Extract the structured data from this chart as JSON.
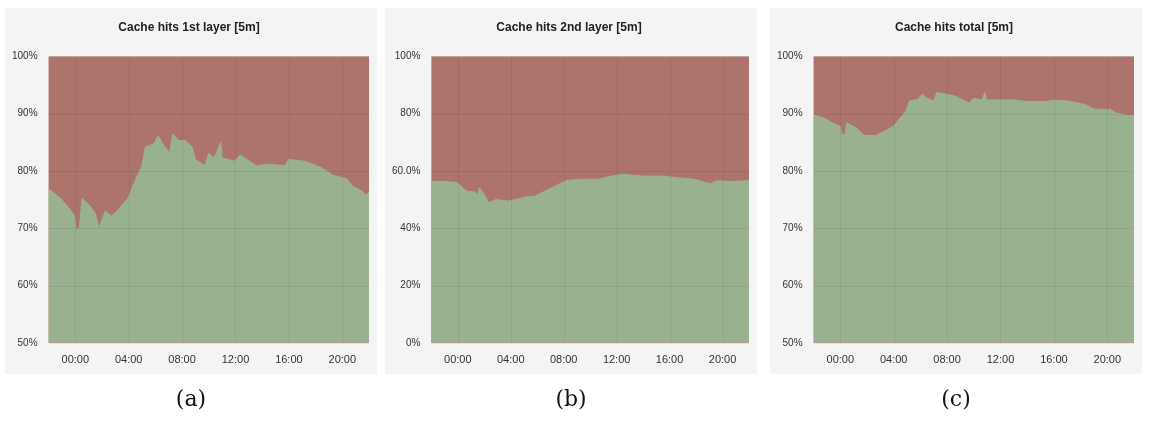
{
  "chart_data": [
    {
      "type": "area",
      "title": "Cache hits 1st layer [5m]",
      "grid": true,
      "legend": false,
      "annotations": [
        "(a)"
      ],
      "xlim": [
        -2,
        22
      ],
      "xticks": [
        {
          "value": 0,
          "label": "00:00"
        },
        {
          "value": 4,
          "label": "04:00"
        },
        {
          "value": 8,
          "label": "08:00"
        },
        {
          "value": 12,
          "label": "12:00"
        },
        {
          "value": 16,
          "label": "16:00"
        },
        {
          "value": 20,
          "label": "20:00"
        }
      ],
      "ylim": [
        50,
        100
      ],
      "yticks": [
        {
          "value": 50,
          "label": "50%"
        },
        {
          "value": 60,
          "label": "60%"
        },
        {
          "value": 70,
          "label": "70%"
        },
        {
          "value": 80,
          "label": "80%"
        },
        {
          "value": 90,
          "label": "90%"
        },
        {
          "value": 100,
          "label": "100%"
        }
      ],
      "bands": [
        {
          "axis": "y",
          "from": 50,
          "to": 100,
          "color": "#ad746b"
        }
      ],
      "x": [
        -2,
        -1.1,
        -0.5,
        -0.05,
        0.07,
        0.3,
        0.5,
        1.04,
        1.5,
        1.76,
        2.24,
        2.72,
        3.2,
        3.93,
        4.41,
        5,
        5.25,
        5.86,
        6.2,
        6.58,
        7.06,
        7.3,
        7.78,
        8.26,
        8.75,
        9,
        9.71,
        10,
        10.4,
        10.9,
        11,
        11.9,
        12.36,
        13.57,
        14.53,
        15.7,
        15.98,
        17.2,
        18.4,
        19.35,
        20.3,
        20.8,
        21.5,
        21.76,
        22
      ],
      "series": [
        {
          "color": "#9ab18f",
          "values": [
            76.9,
            75.2,
            73.6,
            72.2,
            69.7,
            70,
            75.2,
            74.1,
            72.6,
            70,
            73,
            72.1,
            73.2,
            75.2,
            77.9,
            81,
            84.2,
            84.7,
            86.1,
            84.7,
            83.1,
            86.4,
            85.3,
            85.3,
            84.2,
            82,
            80.9,
            83.1,
            82.3,
            85,
            82.3,
            81.7,
            82.8,
            80.9,
            81.2,
            80.9,
            82,
            81.7,
            80.6,
            79.2,
            78.7,
            77.3,
            76.5,
            75.7,
            76.4
          ]
        }
      ]
    },
    {
      "type": "area",
      "title": "Cache hits 2nd layer [5m]",
      "grid": true,
      "legend": false,
      "annotations": [
        "(b)"
      ],
      "xlim": [
        -2,
        22
      ],
      "xticks": [
        {
          "value": 0,
          "label": "00:00"
        },
        {
          "value": 4,
          "label": "04:00"
        },
        {
          "value": 8,
          "label": "08:00"
        },
        {
          "value": 12,
          "label": "12:00"
        },
        {
          "value": 16,
          "label": "16:00"
        },
        {
          "value": 20,
          "label": "20:00"
        }
      ],
      "ylim": [
        0,
        100
      ],
      "yticks": [
        {
          "value": 0,
          "label": "0%"
        },
        {
          "value": 20,
          "label": "20%"
        },
        {
          "value": 40,
          "label": "40%"
        },
        {
          "value": 60,
          "label": "60.0%"
        },
        {
          "value": 80,
          "label": "80%"
        },
        {
          "value": 100,
          "label": "100%"
        }
      ],
      "bands": [
        {
          "axis": "y",
          "from": 0,
          "to": 100,
          "color": "#ad746b"
        }
      ],
      "x": [
        -2,
        -1.1,
        -0.07,
        0.65,
        1.26,
        1.5,
        1.62,
        1.87,
        2.35,
        2.84,
        3.81,
        4.78,
        5.26,
        5.75,
        6.47,
        7.2,
        8.17,
        9.14,
        10.6,
        11.56,
        12.53,
        13.99,
        15.44,
        16.41,
        17.87,
        19.08,
        19.56,
        20.53,
        22
      ],
      "series": [
        {
          "color": "#9ab18f",
          "values": [
            56.3,
            56.3,
            56,
            53,
            52.7,
            51.6,
            54.1,
            52.7,
            48.9,
            50,
            49.5,
            50.5,
            51.1,
            51.1,
            52.7,
            54.4,
            56.6,
            57.1,
            57.1,
            58.2,
            58.8,
            58.2,
            58.2,
            57.7,
            57.1,
            55.5,
            56.6,
            56.3,
            56.6
          ]
        }
      ]
    },
    {
      "type": "area",
      "title": "Cache hits total [5m]",
      "grid": true,
      "legend": false,
      "annotations": [
        "(c)"
      ],
      "xlim": [
        -2,
        22
      ],
      "xticks": [
        {
          "value": 0,
          "label": "00:00"
        },
        {
          "value": 4,
          "label": "04:00"
        },
        {
          "value": 8,
          "label": "08:00"
        },
        {
          "value": 12,
          "label": "12:00"
        },
        {
          "value": 16,
          "label": "16:00"
        },
        {
          "value": 20,
          "label": "20:00"
        }
      ],
      "ylim": [
        50,
        100
      ],
      "yticks": [
        {
          "value": 50,
          "label": "50%"
        },
        {
          "value": 60,
          "label": "60%"
        },
        {
          "value": 70,
          "label": "70%"
        },
        {
          "value": 80,
          "label": "80%"
        },
        {
          "value": 90,
          "label": "90%"
        },
        {
          "value": 100,
          "label": "100%"
        }
      ],
      "bands": [
        {
          "axis": "y",
          "from": 50,
          "to": 100,
          "color": "#ad746b"
        }
      ],
      "x": [
        -2,
        -1.2,
        -0.6,
        0,
        0.12,
        0.36,
        0.48,
        1.2,
        1.8,
        2.65,
        3.37,
        3.98,
        4.46,
        4.94,
        5.18,
        5.78,
        6.14,
        6.5,
        6.99,
        7.23,
        8.19,
        8.67,
        9.64,
        10,
        10.6,
        10.84,
        10.96,
        12.05,
        13,
        13.98,
        15.4,
        16,
        17.1,
        18.3,
        19.04,
        20.24,
        20.7,
        21.45,
        22
      ],
      "series": [
        {
          "color": "#9ab18f",
          "values": [
            89.8,
            89.2,
            88.4,
            87.8,
            86.4,
            86.4,
            88.4,
            87.5,
            86.2,
            86.2,
            87,
            87.8,
            89.2,
            90.5,
            92.2,
            92.5,
            93.4,
            92.7,
            92.2,
            93.7,
            93.3,
            93,
            91.9,
            92.7,
            92.4,
            93.7,
            92.4,
            92.4,
            92.4,
            92.1,
            92.1,
            92.4,
            92.2,
            91.6,
            90.8,
            90.7,
            90.1,
            89.7,
            89.7
          ]
        }
      ]
    }
  ]
}
